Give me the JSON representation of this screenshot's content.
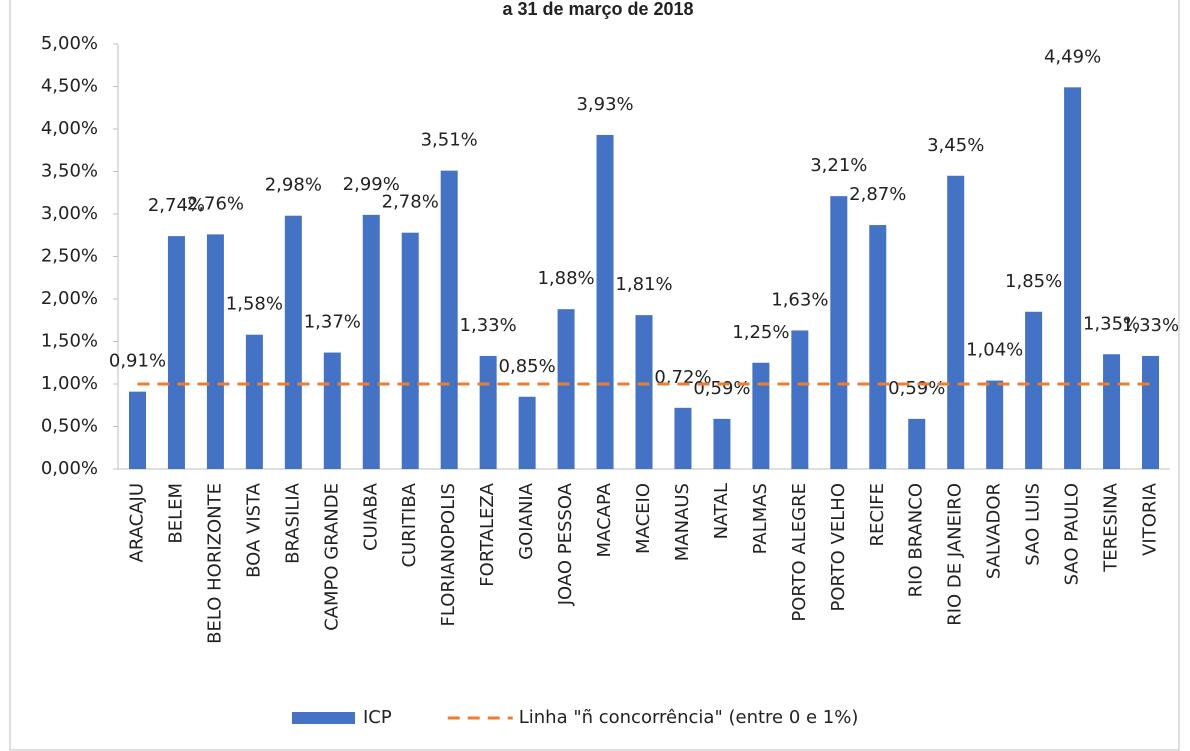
{
  "chart_data": {
    "type": "bar",
    "title": "a 31 de março de 2018",
    "categories": [
      "ARACAJU",
      "BELEM",
      "BELO HORIZONTE",
      "BOA VISTA",
      "BRASILIA",
      "CAMPO GRANDE",
      "CUIABA",
      "CURITIBA",
      "FLORIANOPOLIS",
      "FORTALEZA",
      "GOIANIA",
      "JOAO PESSOA",
      "MACAPA",
      "MACEIO",
      "MANAUS",
      "NATAL",
      "PALMAS",
      "PORTO ALEGRE",
      "PORTO VELHO",
      "RECIFE",
      "RIO BRANCO",
      "RIO DE JANEIRO",
      "SALVADOR",
      "SAO LUIS",
      "SAO PAULO",
      "TERESINA",
      "VITORIA"
    ],
    "series": [
      {
        "name": "ICP",
        "type": "bar",
        "color": "#4472c4",
        "values": [
          0.91,
          2.74,
          2.76,
          1.58,
          2.98,
          1.37,
          2.99,
          2.78,
          3.51,
          1.33,
          0.85,
          1.88,
          3.93,
          1.81,
          0.72,
          0.59,
          1.25,
          1.63,
          3.21,
          2.87,
          0.59,
          3.45,
          1.04,
          1.85,
          4.49,
          1.35,
          1.33
        ],
        "value_labels": [
          "0,91%",
          "2,74%",
          "2,76%",
          "1,58%",
          "2,98%",
          "1,37%",
          "2,99%",
          "2,78%",
          "3,51%",
          "1,33%",
          "0,85%",
          "1,88%",
          "3,93%",
          "1,81%",
          "0,72%",
          "0,59%",
          "1,25%",
          "1,63%",
          "3,21%",
          "2,87%",
          "0,59%",
          "3,45%",
          "1,04%",
          "1,85%",
          "4,49%",
          "1,35%",
          "1,33%"
        ]
      },
      {
        "name": "Linha \"ñ concorrência\" (entre 0 e 1%)",
        "type": "line",
        "color": "#ed7d31",
        "dashed": true,
        "values": [
          1,
          1,
          1,
          1,
          1,
          1,
          1,
          1,
          1,
          1,
          1,
          1,
          1,
          1,
          1,
          1,
          1,
          1,
          1,
          1,
          1,
          1,
          1,
          1,
          1,
          1,
          1
        ]
      }
    ],
    "ylim": [
      0,
      5
    ],
    "yticks": [
      {
        "value": 0,
        "label": "0,00%"
      },
      {
        "value": 0.5,
        "label": "0,50%"
      },
      {
        "value": 1,
        "label": "1,00%"
      },
      {
        "value": 1.5,
        "label": "1,50%"
      },
      {
        "value": 2,
        "label": "2,00%"
      },
      {
        "value": 2.5,
        "label": "2,50%"
      },
      {
        "value": 3,
        "label": "3,00%"
      },
      {
        "value": 3.5,
        "label": "3,50%"
      },
      {
        "value": 4,
        "label": "4,00%"
      },
      {
        "value": 4.5,
        "label": "4,50%"
      },
      {
        "value": 5,
        "label": "5,00%"
      }
    ],
    "grid": false,
    "legend": "bottom"
  }
}
